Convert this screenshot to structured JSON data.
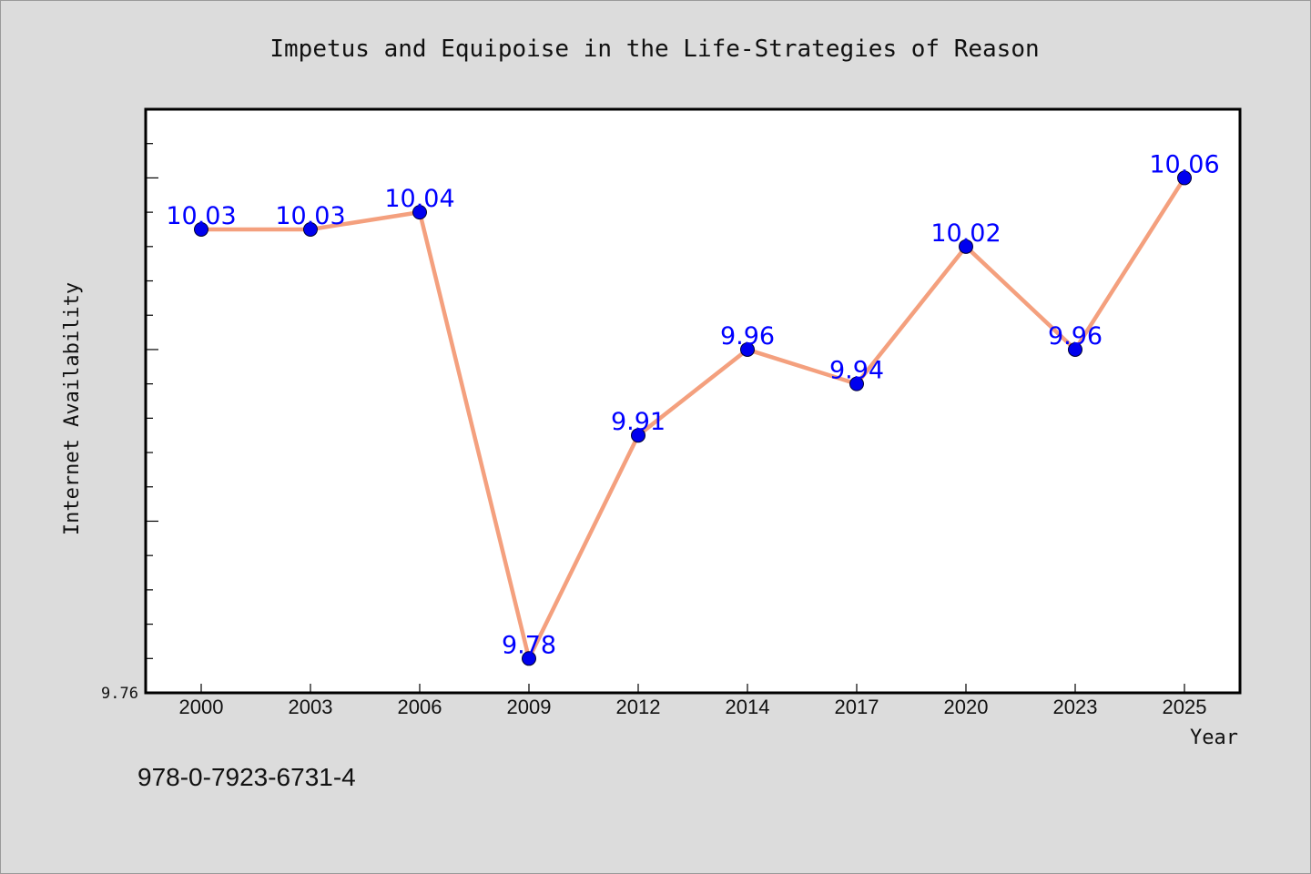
{
  "chart_data": {
    "type": "line",
    "title": "Impetus and Equipoise in the Life-Strategies of Reason",
    "xlabel": "Year",
    "ylabel": "Internet Availability",
    "categories": [
      "2000",
      "2003",
      "2006",
      "2009",
      "2012",
      "2014",
      "2017",
      "2020",
      "2023",
      "2025"
    ],
    "series": [
      {
        "values": [
          10.03,
          10.03,
          10.04,
          9.78,
          9.91,
          9.96,
          9.94,
          10.02,
          9.96,
          10.06
        ],
        "data_labels": [
          "10.03",
          "10.03",
          "10.04",
          "9.78",
          "9.91",
          "9.96",
          "9.94",
          "10.02",
          "9.96",
          "10.06"
        ],
        "line_color": "#f4a07e",
        "marker_color": "#0000ee"
      }
    ],
    "y_tick_labels": [
      "9.76"
    ],
    "ylim": [
      9.76,
      10.1
    ],
    "grid": false,
    "legend": "none"
  },
  "footer": {
    "isbn": "978-0-7923-6731-4"
  }
}
